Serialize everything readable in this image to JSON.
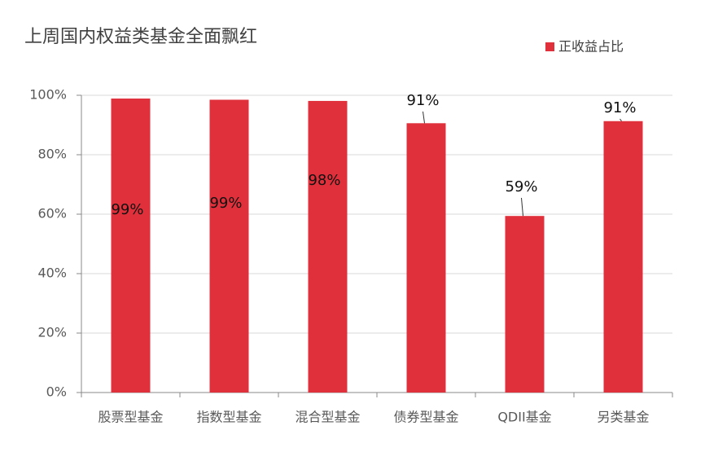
{
  "chart_data": {
    "type": "bar",
    "title": "上周国内权益类基金全面飘红",
    "categories": [
      "股票型基金",
      "指数型基金",
      "混合型基金",
      "债券型基金",
      "QDII基金",
      "另类基金"
    ],
    "series": [
      {
        "name": "正收益占比",
        "color": "#e0303b",
        "values": [
          98.9,
          98.5,
          98.1,
          90.6,
          59.4,
          91.3
        ],
        "value_labels": [
          "99%",
          "99%",
          "98%",
          "91%",
          "59%",
          "91%"
        ]
      }
    ],
    "ylim": [
      0,
      100
    ],
    "yticks": [
      {
        "value": 0,
        "label": "0%"
      },
      {
        "value": 20,
        "label": "20%"
      },
      {
        "value": 40,
        "label": "40%"
      },
      {
        "value": 60,
        "label": "60%"
      },
      {
        "value": 80,
        "label": "80%"
      },
      {
        "value": 100,
        "label": "100%"
      }
    ],
    "grid": true,
    "legend": "top-right"
  }
}
